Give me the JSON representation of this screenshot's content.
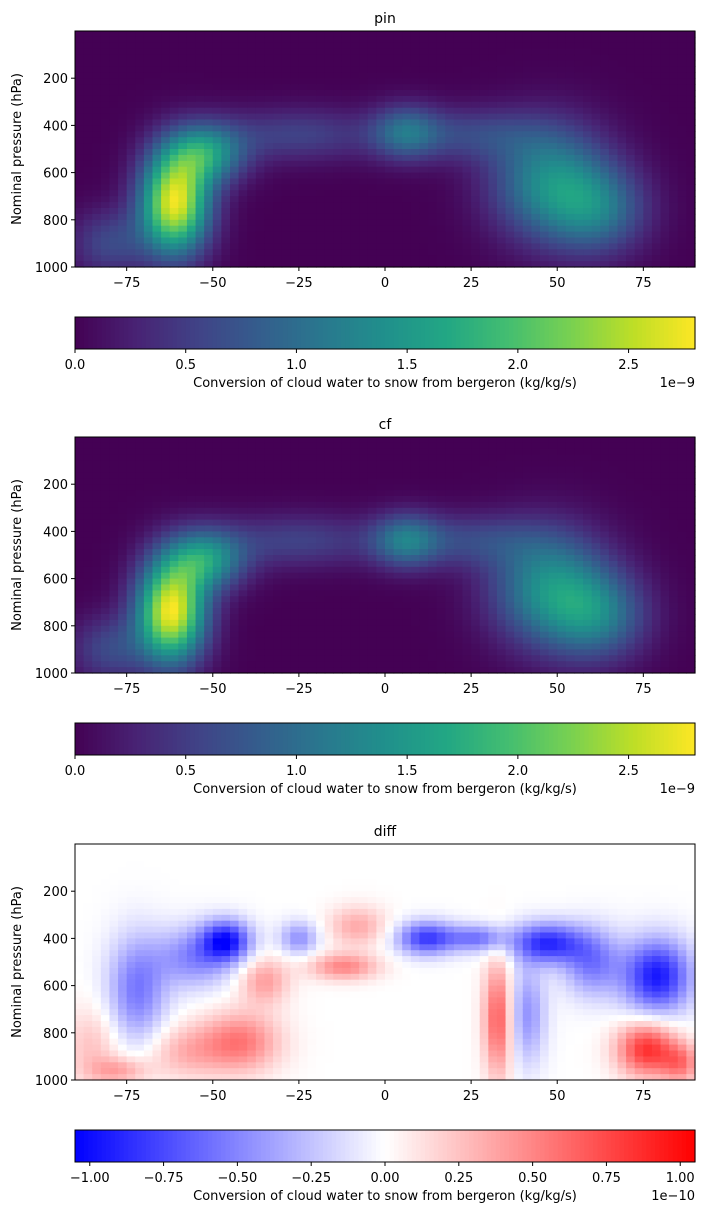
{
  "chart_data": [
    {
      "type": "heatmap",
      "title": "pin",
      "ylabel": "Nominal pressure (hPa)",
      "xlim": [
        -90,
        90
      ],
      "ylim": [
        1000,
        0
      ],
      "xticks": [
        -75,
        -50,
        -25,
        0,
        25,
        50,
        75
      ],
      "yticks": [
        200,
        400,
        600,
        800,
        1000
      ],
      "colormap": "viridis",
      "colorbar": {
        "label": "Conversion of cloud water to snow from bergeron (kg/kg/s)",
        "min": 0.0,
        "max": 2.8,
        "ticks": [
          "0.0",
          "0.5",
          "1.0",
          "1.5",
          "2.0",
          "2.5"
        ],
        "tick_values": [
          0,
          0.5,
          1.0,
          1.5,
          2.0,
          2.5
        ],
        "multiplier": "1e−9"
      },
      "features": [
        {
          "lat": -61,
          "p": 730,
          "value": 2.7,
          "sigma_lat": 7,
          "sigma_p": 150
        },
        {
          "lat": -52,
          "p": 520,
          "value": 1.4,
          "sigma_lat": 8,
          "sigma_p": 90
        },
        {
          "lat": -80,
          "p": 900,
          "value": 0.6,
          "sigma_lat": 8,
          "sigma_p": 100
        },
        {
          "lat": 6,
          "p": 430,
          "value": 0.9,
          "sigma_lat": 7,
          "sigma_p": 80
        },
        {
          "lat": -25,
          "p": 440,
          "value": 0.55,
          "sigma_lat": 16,
          "sigma_p": 80
        },
        {
          "lat": 25,
          "p": 440,
          "value": 0.55,
          "sigma_lat": 14,
          "sigma_p": 80
        },
        {
          "lat": 48,
          "p": 640,
          "value": 1.3,
          "sigma_lat": 12,
          "sigma_p": 170
        },
        {
          "lat": 62,
          "p": 760,
          "value": 0.9,
          "sigma_lat": 10,
          "sigma_p": 130
        }
      ]
    },
    {
      "type": "heatmap",
      "title": "cf",
      "ylabel": "Nominal pressure (hPa)",
      "xlim": [
        -90,
        90
      ],
      "ylim": [
        1000,
        0
      ],
      "xticks": [
        -75,
        -50,
        -25,
        0,
        25,
        50,
        75
      ],
      "yticks": [
        200,
        400,
        600,
        800,
        1000
      ],
      "colormap": "viridis",
      "colorbar": {
        "label": "Conversion of cloud water to snow from bergeron (kg/kg/s)",
        "min": 0.0,
        "max": 2.8,
        "ticks": [
          "0.0",
          "0.5",
          "1.0",
          "1.5",
          "2.0",
          "2.5"
        ],
        "tick_values": [
          0,
          0.5,
          1.0,
          1.5,
          2.0,
          2.5
        ],
        "multiplier": "1e−9"
      },
      "features": [
        {
          "lat": -62,
          "p": 740,
          "value": 2.75,
          "sigma_lat": 7,
          "sigma_p": 150
        },
        {
          "lat": -52,
          "p": 520,
          "value": 1.4,
          "sigma_lat": 8,
          "sigma_p": 90
        },
        {
          "lat": -80,
          "p": 900,
          "value": 0.6,
          "sigma_lat": 8,
          "sigma_p": 100
        },
        {
          "lat": 6,
          "p": 440,
          "value": 1.0,
          "sigma_lat": 7,
          "sigma_p": 80
        },
        {
          "lat": -25,
          "p": 440,
          "value": 0.55,
          "sigma_lat": 16,
          "sigma_p": 80
        },
        {
          "lat": 25,
          "p": 440,
          "value": 0.55,
          "sigma_lat": 14,
          "sigma_p": 80
        },
        {
          "lat": 48,
          "p": 640,
          "value": 1.35,
          "sigma_lat": 12,
          "sigma_p": 170
        },
        {
          "lat": 62,
          "p": 760,
          "value": 0.95,
          "sigma_lat": 10,
          "sigma_p": 130
        }
      ]
    },
    {
      "type": "heatmap",
      "title": "diff",
      "ylabel": "Nominal pressure (hPa)",
      "xlim": [
        -90,
        90
      ],
      "ylim": [
        1000,
        0
      ],
      "xticks": [
        -75,
        -50,
        -25,
        0,
        25,
        50,
        75
      ],
      "yticks": [
        200,
        400,
        600,
        800,
        1000
      ],
      "colormap": "bwr",
      "colorbar": {
        "label": "Conversion of cloud water to snow from bergeron (kg/kg/s)",
        "min": -1.05,
        "max": 1.05,
        "ticks": [
          "−1.00",
          "−0.75",
          "−0.50",
          "−0.25",
          "0.00",
          "0.25",
          "0.50",
          "0.75",
          "1.00"
        ],
        "tick_values": [
          -1.0,
          -0.75,
          -0.5,
          -0.25,
          0,
          0.25,
          0.5,
          0.75,
          1.0
        ],
        "multiplier": "1e−10"
      },
      "features": [
        {
          "lat": -46,
          "p": 410,
          "value": -0.9,
          "sigma_lat": 5,
          "sigma_p": 60
        },
        {
          "lat": -55,
          "p": 480,
          "value": -0.5,
          "sigma_lat": 8,
          "sigma_p": 90
        },
        {
          "lat": -72,
          "p": 620,
          "value": -0.55,
          "sigma_lat": 6,
          "sigma_p": 160
        },
        {
          "lat": -42,
          "p": 840,
          "value": 0.55,
          "sigma_lat": 8,
          "sigma_p": 90
        },
        {
          "lat": -58,
          "p": 880,
          "value": 0.3,
          "sigma_lat": 8,
          "sigma_p": 80
        },
        {
          "lat": -85,
          "p": 860,
          "value": 0.25,
          "sigma_lat": 6,
          "sigma_p": 120
        },
        {
          "lat": -77,
          "p": 960,
          "value": 0.35,
          "sigma_lat": 6,
          "sigma_p": 40
        },
        {
          "lat": -35,
          "p": 580,
          "value": 0.4,
          "sigma_lat": 5,
          "sigma_p": 70
        },
        {
          "lat": -25,
          "p": 400,
          "value": -0.45,
          "sigma_lat": 4,
          "sigma_p": 50
        },
        {
          "lat": -12,
          "p": 520,
          "value": 0.5,
          "sigma_lat": 7,
          "sigma_p": 40
        },
        {
          "lat": -8,
          "p": 350,
          "value": 0.35,
          "sigma_lat": 6,
          "sigma_p": 60
        },
        {
          "lat": 12,
          "p": 400,
          "value": -0.8,
          "sigma_lat": 6,
          "sigma_p": 50
        },
        {
          "lat": 27,
          "p": 400,
          "value": -0.55,
          "sigma_lat": 6,
          "sigma_p": 40
        },
        {
          "lat": 33,
          "p": 740,
          "value": 0.7,
          "sigma_lat": 3,
          "sigma_p": 170
        },
        {
          "lat": 41,
          "p": 720,
          "value": -0.45,
          "sigma_lat": 4,
          "sigma_p": 150
        },
        {
          "lat": 47,
          "p": 420,
          "value": -0.85,
          "sigma_lat": 7,
          "sigma_p": 60
        },
        {
          "lat": 60,
          "p": 500,
          "value": -0.55,
          "sigma_lat": 6,
          "sigma_p": 100
        },
        {
          "lat": 79,
          "p": 560,
          "value": -0.95,
          "sigma_lat": 7,
          "sigma_p": 110
        },
        {
          "lat": 76,
          "p": 870,
          "value": 0.85,
          "sigma_lat": 6,
          "sigma_p": 80
        },
        {
          "lat": 86,
          "p": 930,
          "value": 0.5,
          "sigma_lat": 4,
          "sigma_p": 60
        }
      ]
    }
  ]
}
